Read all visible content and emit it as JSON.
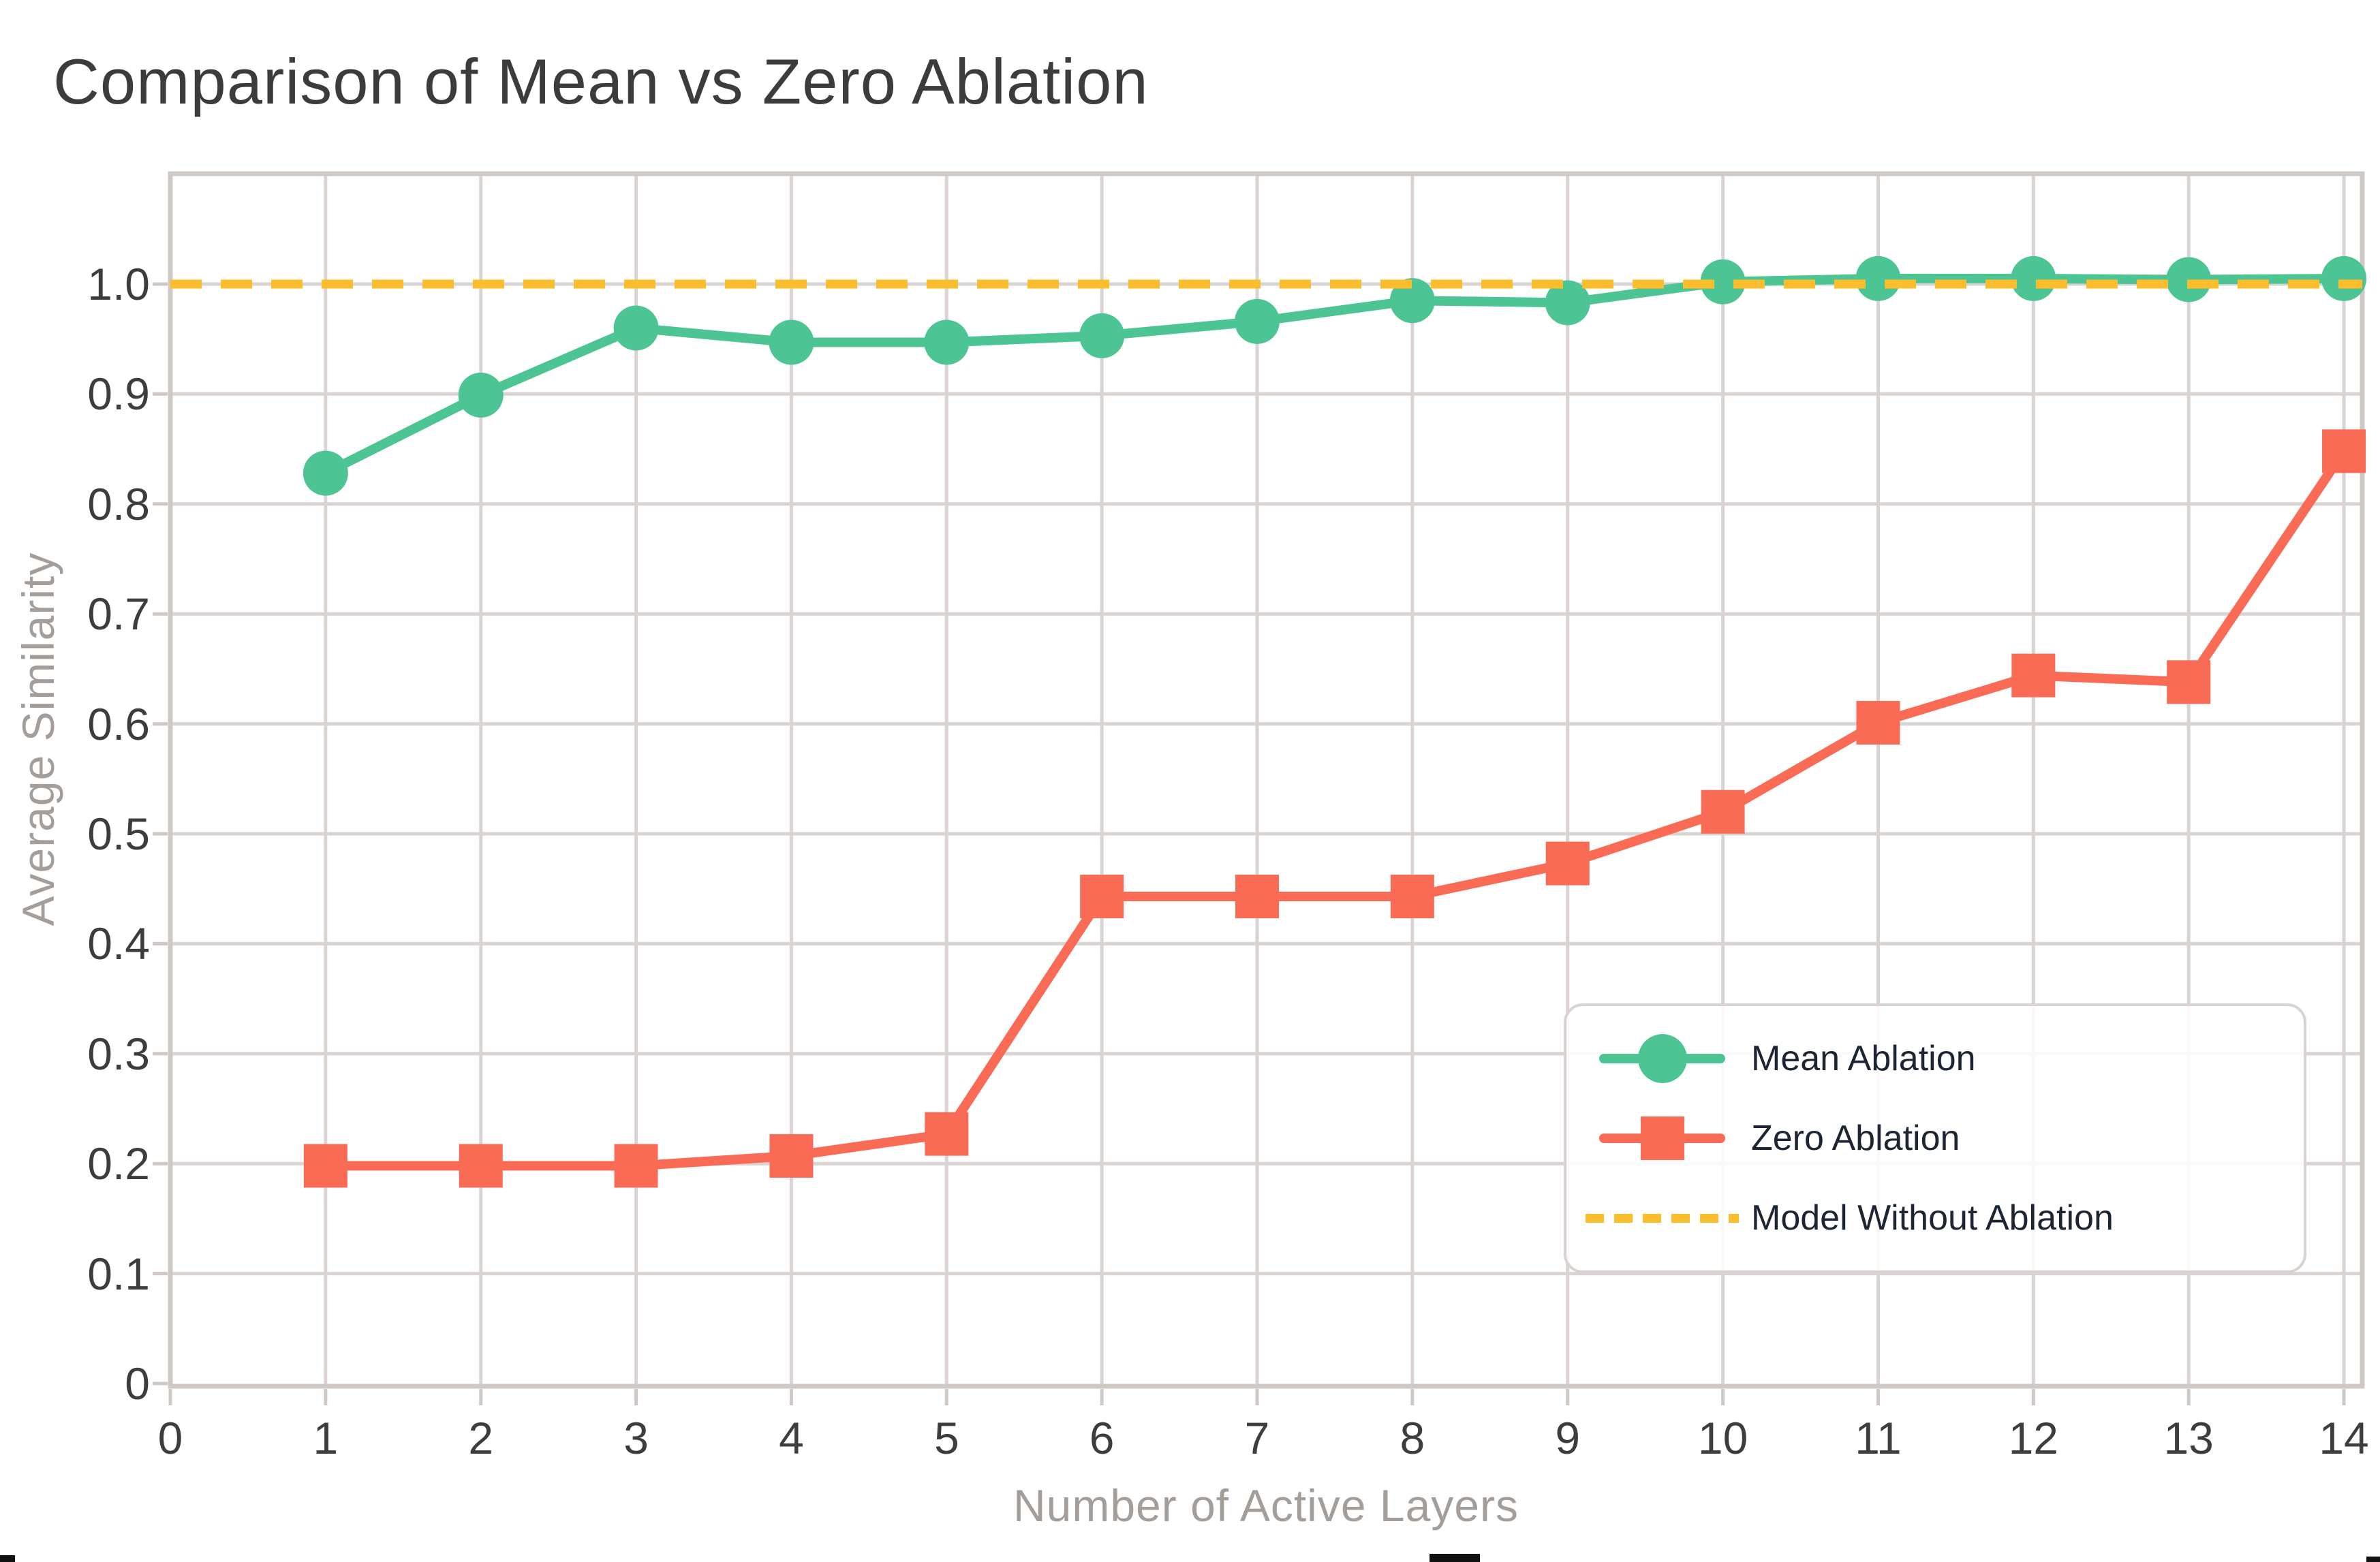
{
  "title": "Comparison of Mean vs Zero Ablation",
  "chart_data": {
    "type": "line",
    "x": [
      1,
      2,
      3,
      4,
      5,
      6,
      7,
      8,
      9,
      10,
      11,
      12,
      13,
      14
    ],
    "series": [
      {
        "name": "Mean Ablation",
        "color": "#4cc494",
        "marker": "circle",
        "values": [
          0.828,
          0.899,
          0.96,
          0.947,
          0.947,
          0.953,
          0.966,
          0.985,
          0.983,
          1.002,
          1.005,
          1.005,
          1.004,
          1.005
        ]
      },
      {
        "name": "Zero Ablation",
        "color": "#f96b55",
        "marker": "square",
        "values": [
          0.198,
          0.198,
          0.198,
          0.207,
          0.227,
          0.443,
          0.443,
          0.443,
          0.473,
          0.52,
          0.601,
          0.644,
          0.638,
          0.848
        ]
      }
    ],
    "reference_line": {
      "name": "Model Without Ablation",
      "color": "#fbbd2b",
      "style": "dashed",
      "value": 1.0
    },
    "xlabel": "Number of Active Layers",
    "ylabel": "Average Similarity",
    "x_ticks": [
      "0",
      "1",
      "2",
      "3",
      "4",
      "5",
      "6",
      "7",
      "8",
      "9",
      "10",
      "11",
      "12",
      "13",
      "14"
    ],
    "y_ticks": [
      "0",
      "0.1",
      "0.2",
      "0.3",
      "0.4",
      "0.5",
      "0.6",
      "0.7",
      "0.8",
      "0.9",
      "1.0"
    ],
    "xlim": [
      0,
      14.12
    ],
    "ylim": [
      0,
      1.1
    ],
    "grid": true,
    "legend_position": "lower right",
    "grid_color": "#d9d4d1",
    "spine_color": "#cfc9c6",
    "title_color": "#3c3c3c",
    "tick_label_color": "#3e3d3c",
    "axis_label_color": "#a49e9a",
    "legend_text_color": "#1b2534"
  }
}
